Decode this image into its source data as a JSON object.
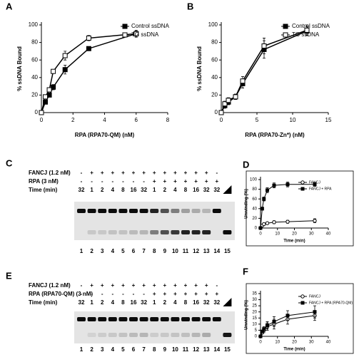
{
  "chart_data": [
    {
      "type": "line",
      "panel": "A",
      "xlabel": "RPA (RPA70-QM) (nM)",
      "ylabel": "% ssDNA Bound",
      "x": [
        0,
        0.25,
        0.5,
        0.75,
        1.5,
        3,
        6
      ],
      "xlim": [
        0,
        8
      ],
      "xticks": [
        0,
        2,
        4,
        6,
        8
      ],
      "ylim": [
        0,
        100
      ],
      "yticks": [
        0,
        20,
        40,
        60,
        80,
        100
      ],
      "legend": "upper right",
      "series": [
        {
          "name": "Control ssDNA",
          "color": "#000000",
          "marker": "filled-square",
          "values": [
            0,
            12,
            20,
            29,
            49,
            73,
            90
          ],
          "errors": [
            1,
            2,
            2,
            3,
            5,
            2,
            3
          ]
        },
        {
          "name": "TG ssDNA",
          "color": "#000000",
          "marker": "open-square",
          "values": [
            0,
            18,
            26,
            47,
            65,
            85,
            90
          ],
          "errors": [
            1,
            2,
            2,
            2,
            5,
            3,
            4
          ]
        }
      ]
    },
    {
      "type": "line",
      "panel": "B",
      "xlabel": "RPA (RPA70-Zn*) (nM)",
      "ylabel": "% ssDNA Bound",
      "x": [
        0,
        0.5,
        1,
        2,
        3,
        6,
        12
      ],
      "xlim": [
        0,
        15
      ],
      "xticks": [
        0,
        5,
        10,
        15
      ],
      "ylim": [
        0,
        100
      ],
      "yticks": [
        0,
        20,
        40,
        60,
        80,
        100
      ],
      "legend": "upper right",
      "series": [
        {
          "name": "Control ssDNA",
          "color": "#000000",
          "marker": "filled-square",
          "values": [
            0,
            8,
            12,
            18,
            33,
            72,
            93
          ],
          "errors": [
            1,
            3,
            3,
            3,
            5,
            10,
            5
          ]
        },
        {
          "name": "TG ssDNA",
          "color": "#000000",
          "marker": "open-square",
          "values": [
            0,
            10,
            14,
            18,
            36,
            76,
            94
          ],
          "errors": [
            1,
            3,
            3,
            3,
            5,
            9,
            6
          ]
        }
      ]
    },
    {
      "type": "line",
      "panel": "D",
      "xlabel": "Time (min)",
      "ylabel": "Unwinding (%)",
      "x": [
        0,
        1,
        2,
        4,
        8,
        16,
        32
      ],
      "xlim": [
        0,
        40
      ],
      "xticks": [
        0,
        10,
        20,
        30,
        40
      ],
      "ylim": [
        0,
        100
      ],
      "yticks": [
        0,
        20,
        40,
        60,
        80,
        100
      ],
      "legend": "upper right",
      "series": [
        {
          "name": "FANCJ",
          "color": "#000000",
          "marker": "open-circle",
          "values": [
            0,
            5,
            8,
            10,
            12,
            13,
            15
          ],
          "errors": [
            1,
            1,
            2,
            2,
            3,
            3,
            4
          ]
        },
        {
          "name": "FANCJ + RPA",
          "color": "#000000",
          "marker": "filled-square",
          "values": [
            0,
            40,
            60,
            78,
            88,
            90,
            90
          ],
          "errors": [
            1,
            3,
            4,
            5,
            5,
            5,
            4
          ]
        }
      ]
    },
    {
      "type": "line",
      "panel": "F",
      "xlabel": "Time (min)",
      "ylabel": "Unwinding (%)",
      "x": [
        0,
        1,
        2,
        4,
        8,
        16,
        32
      ],
      "xlim": [
        0,
        40
      ],
      "xticks": [
        0,
        10,
        20,
        30,
        40
      ],
      "ylim": [
        0,
        35
      ],
      "yticks": [
        0,
        5,
        10,
        15,
        20,
        25,
        30,
        35
      ],
      "legend": "upper right",
      "series": [
        {
          "name": "FANCJ",
          "color": "#000000",
          "marker": "open-circle",
          "values": [
            0,
            3,
            5,
            8,
            10,
            14,
            17
          ],
          "errors": [
            1,
            1,
            2,
            3,
            4,
            4,
            4
          ]
        },
        {
          "name": "FANCJ + RPA (RPA70-QM)",
          "color": "#000000",
          "marker": "filled-square",
          "values": [
            0,
            4,
            6,
            9,
            12,
            17,
            20
          ],
          "errors": [
            1,
            1,
            2,
            3,
            4,
            4,
            5
          ]
        }
      ]
    }
  ],
  "gels": [
    {
      "panel": "C",
      "rows": [
        {
          "label": "FANCJ (1.2 nM)",
          "cells": [
            "-",
            "+",
            "+",
            "+",
            "+",
            "+",
            "+",
            "+",
            "+",
            "+",
            "+",
            "+",
            "+",
            "-"
          ]
        },
        {
          "label": "RPA (3 nM)",
          "cells": [
            "-",
            "-",
            "-",
            "-",
            "-",
            "-",
            "-",
            "+",
            "+",
            "+",
            "+",
            "+",
            "+",
            "+"
          ]
        },
        {
          "label": "Time (min)",
          "cells": [
            "32",
            "1",
            "2",
            "4",
            "8",
            "16",
            "32",
            "1",
            "2",
            "4",
            "8",
            "16",
            "32",
            "32"
          ]
        }
      ],
      "lanes": [
        1,
        2,
        3,
        4,
        5,
        6,
        7,
        8,
        9,
        10,
        11,
        12,
        13,
        14,
        15
      ]
    },
    {
      "panel": "E",
      "rows": [
        {
          "label": "FANCJ (1.2 nM)",
          "cells": [
            "-",
            "+",
            "+",
            "+",
            "+",
            "+",
            "+",
            "+",
            "+",
            "+",
            "+",
            "+",
            "+",
            "-"
          ]
        },
        {
          "label": "RPA (RPA70-QM) (3 nM)",
          "cells": [
            "-",
            "-",
            "-",
            "-",
            "-",
            "-",
            "-",
            "+",
            "+",
            "+",
            "+",
            "+",
            "+",
            "+"
          ]
        },
        {
          "label": "Time (min)",
          "cells": [
            "32",
            "1",
            "2",
            "4",
            "8",
            "16",
            "32",
            "1",
            "2",
            "4",
            "8",
            "16",
            "32",
            "32"
          ]
        }
      ],
      "lanes": [
        1,
        2,
        3,
        4,
        5,
        6,
        7,
        8,
        9,
        10,
        11,
        12,
        13,
        14,
        15
      ]
    }
  ]
}
